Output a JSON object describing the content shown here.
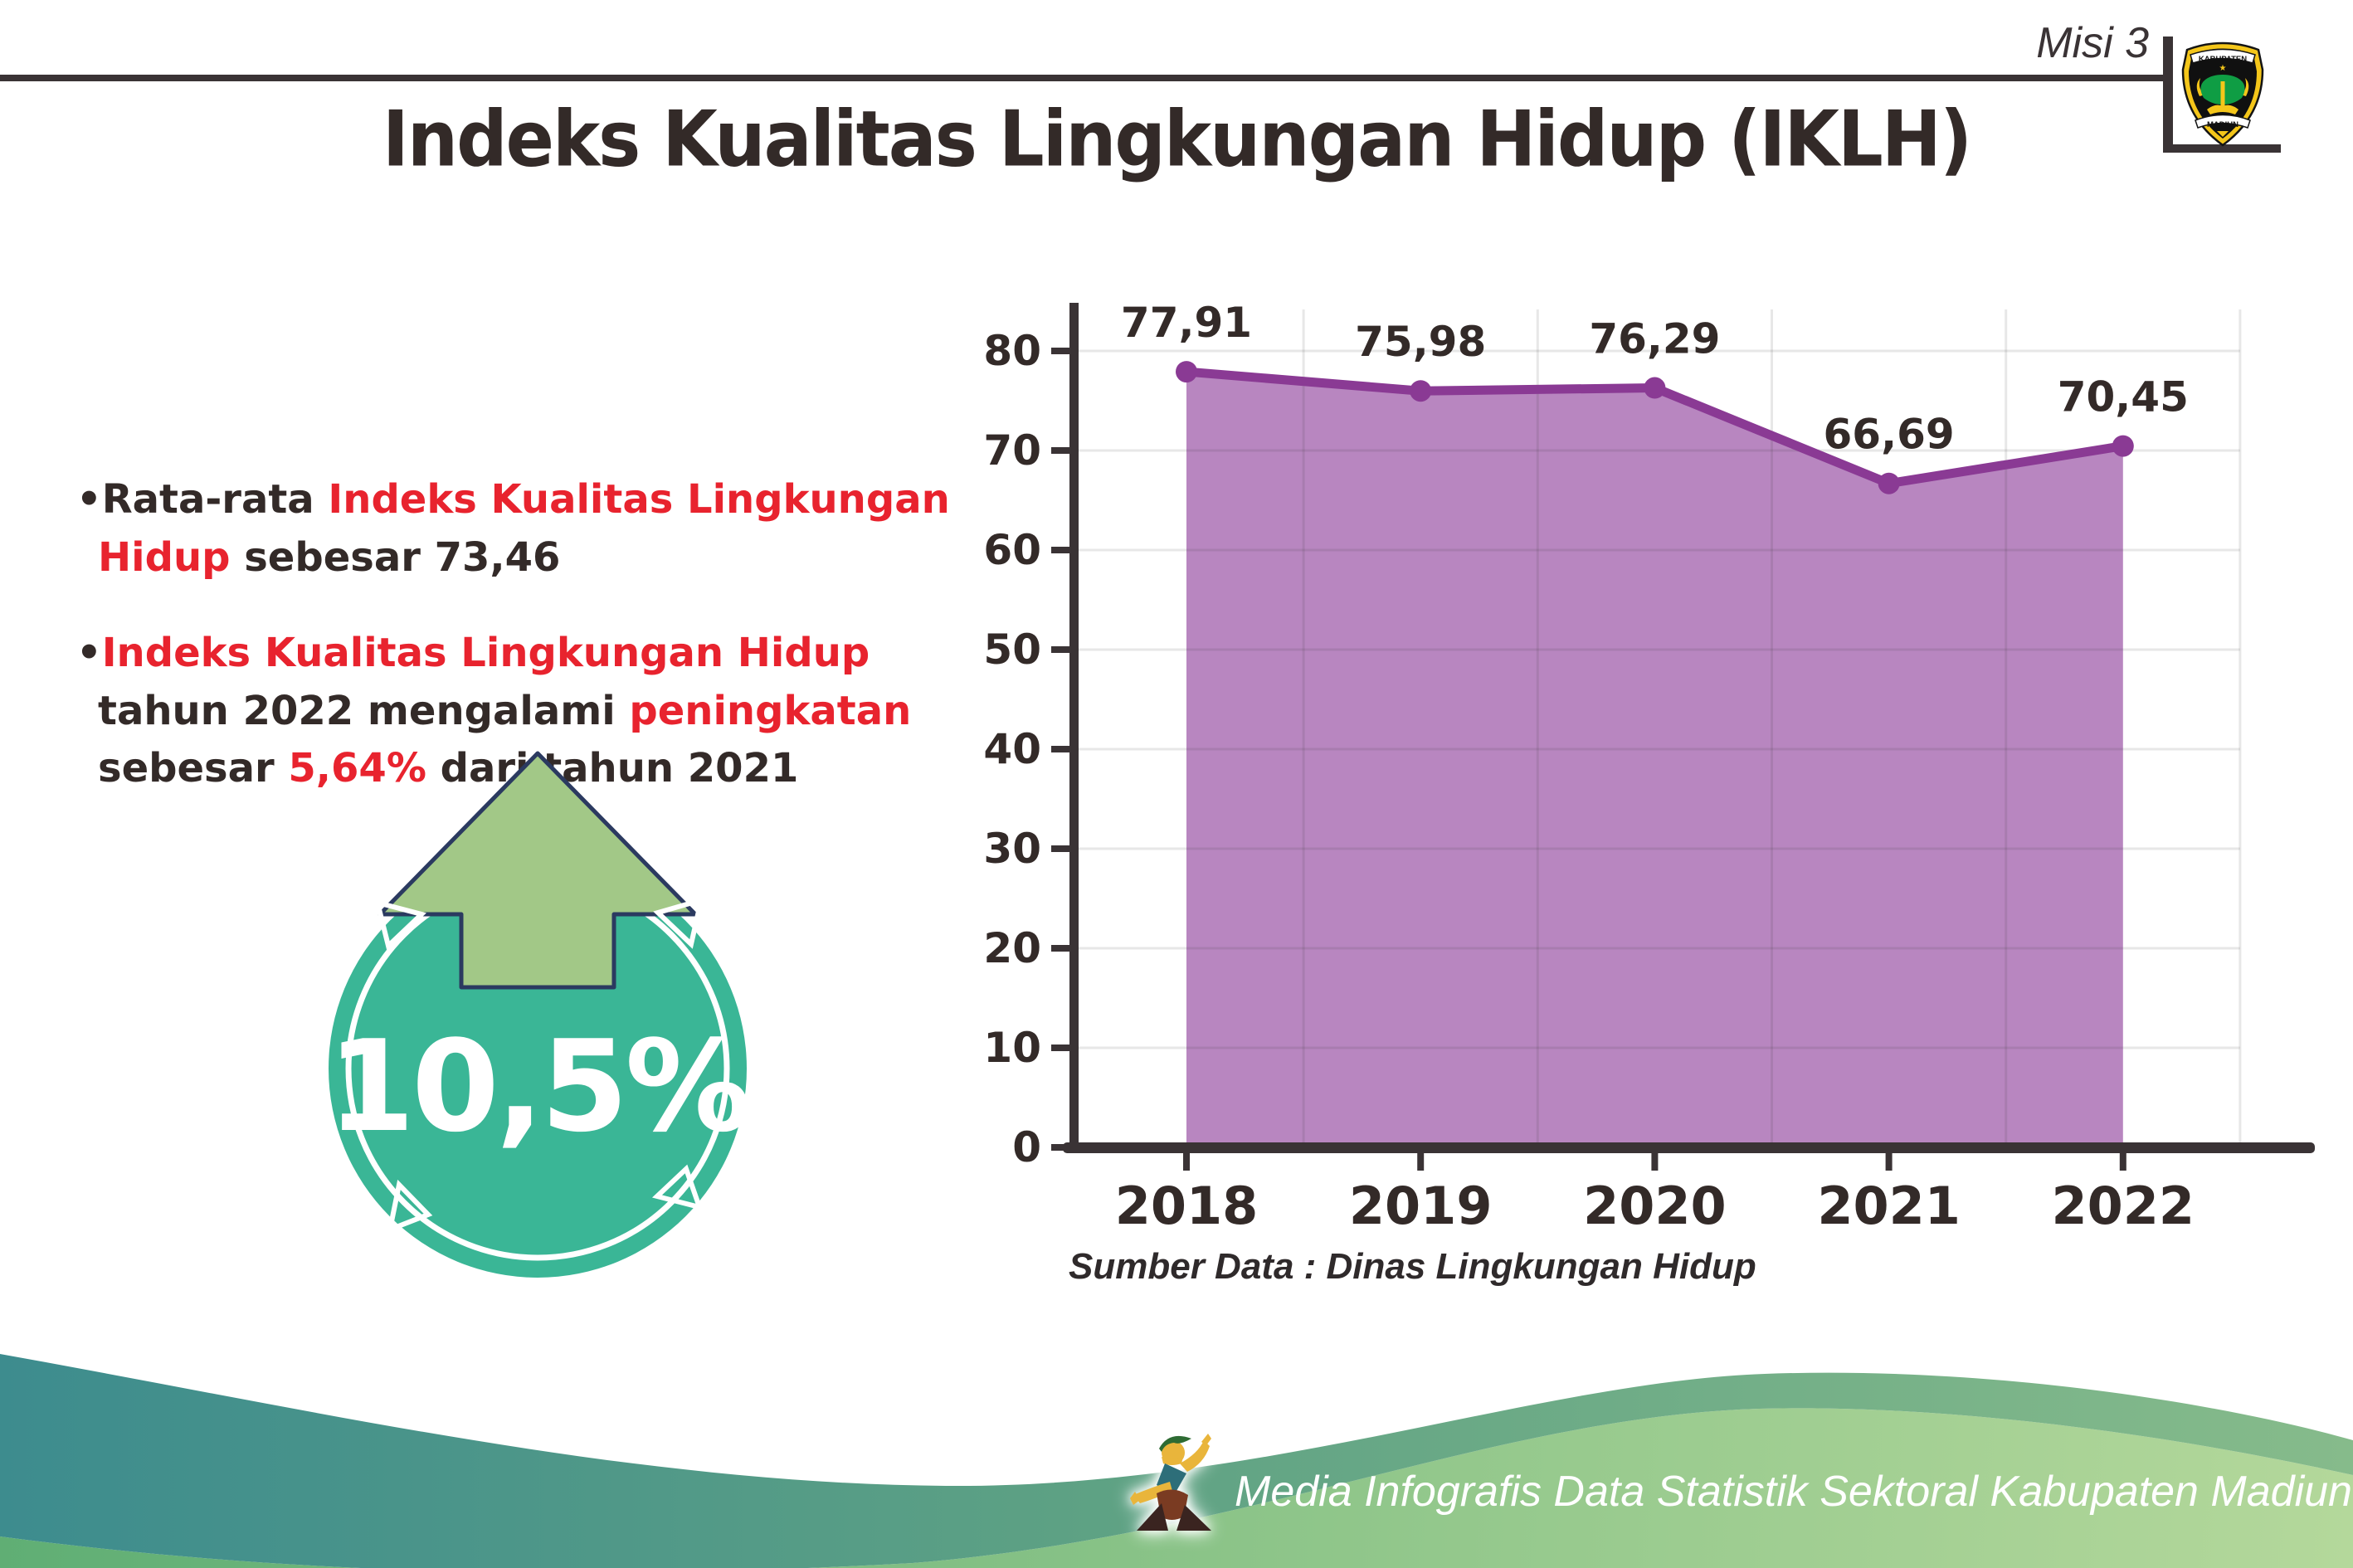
{
  "header": {
    "misi_label": "Misi 3",
    "logo": {
      "top_text": "KABUPATEN",
      "bottom_text": "MADIUN"
    }
  },
  "title": "Indeks Kualitas Lingkungan Hidup (IKLH)",
  "bullets": {
    "marker": "•",
    "items": [
      {
        "segments": [
          {
            "text": "Rata-rata ",
            "color": "dark"
          },
          {
            "text": "Indeks Kualitas Lingkungan Hidup",
            "color": "red"
          },
          {
            "text": " sebesar 73,46",
            "color": "dark"
          }
        ]
      },
      {
        "segments": [
          {
            "text": "Indeks Kualitas Lingkungan Hidup",
            "color": "red"
          },
          {
            "text": " tahun 2022 mengalami ",
            "color": "dark"
          },
          {
            "text": "peningkatan",
            "color": "red"
          },
          {
            "text": " sebesar ",
            "color": "dark"
          },
          {
            "text": "5,64%",
            "color": "red"
          },
          {
            "text": " dari tahun 2021",
            "color": "dark"
          }
        ]
      }
    ]
  },
  "badge": {
    "value": "10,5%",
    "direction": "up"
  },
  "chart_data": {
    "type": "area",
    "title": "",
    "categories": [
      "2018",
      "2019",
      "2020",
      "2021",
      "2022"
    ],
    "values": [
      77.91,
      75.98,
      76.29,
      66.69,
      70.45
    ],
    "point_labels": [
      "77,91",
      "75,98",
      "76,29",
      "66,69",
      "70,45"
    ],
    "xlabel": "",
    "ylabel": "",
    "ylim": [
      0,
      80
    ],
    "ytick_step": 10,
    "yticks": [
      0,
      10,
      20,
      30,
      40,
      50,
      60,
      70,
      80
    ],
    "grid": true,
    "legend": false,
    "source": "Sumber Data : Dinas Lingkungan Hidup"
  },
  "footer": {
    "text": "Media Infografis Data Statistik Sektoral Kabupaten Madiun |"
  },
  "colors": {
    "accent_red": "#e8232e",
    "text_dark": "#332a28",
    "axis_dark": "#3a3335",
    "area_fill": "#b886c0",
    "line_purple": "#8a3a94",
    "badge_teal": "#3ab696",
    "arrow_green": "#a2c887",
    "arrow_outline": "#2b3a60",
    "footer_teal": "#3d8c8e",
    "footer_green": "#7fc08a"
  }
}
